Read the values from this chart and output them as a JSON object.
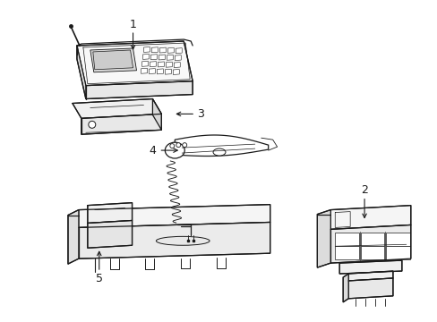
{
  "bg_color": "#ffffff",
  "line_color": "#1a1a1a",
  "fig_width": 4.89,
  "fig_height": 3.6,
  "dpi": 100,
  "label_fs": 9
}
